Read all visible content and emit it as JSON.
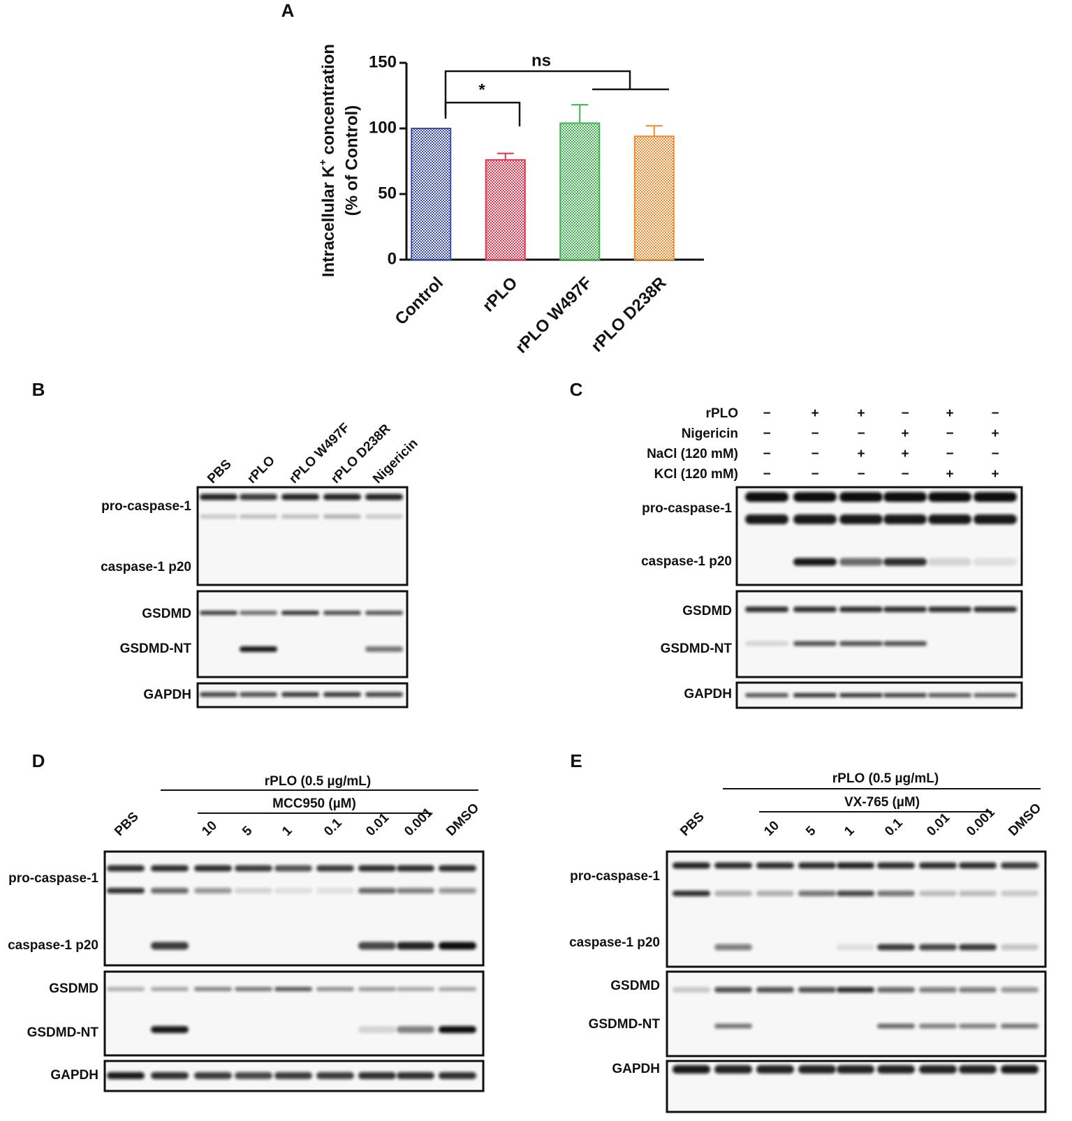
{
  "panel_labels": [
    "A",
    "B",
    "C",
    "D",
    "E"
  ],
  "chart_data": {
    "type": "bar",
    "ylabel": {
      "text": "Intracellular K",
      "superscript": "+",
      "suffix": " concentration",
      "line2": "(% of Control)"
    },
    "categories": [
      "Control",
      "rPLO",
      "rPLO W497F",
      "rPLO D238R"
    ],
    "values": [
      100,
      76,
      104,
      94
    ],
    "errors": [
      0,
      5,
      14,
      8
    ],
    "colors": [
      "#3a4bb0",
      "#e8334a",
      "#3cb54a",
      "#f08a2c"
    ],
    "ylim": [
      0,
      150
    ],
    "yticks": [
      0,
      50,
      100,
      150
    ],
    "annotations": [
      "*",
      "ns"
    ]
  },
  "blot_b": {
    "lanes": [
      "PBS",
      "rPLO",
      "rPLO W497F",
      "rPLO D238R",
      "Nigericin"
    ],
    "rows": [
      "pro-caspase-1",
      "caspase-1 p20",
      "GSDMD",
      "GSDMD-NT",
      "GAPDH"
    ]
  },
  "blot_c": {
    "conditions": [
      {
        "name": "rPLO",
        "signs": [
          "−",
          "+",
          "+",
          "−",
          "+",
          "−"
        ]
      },
      {
        "name": "Nigericin",
        "signs": [
          "−",
          "−",
          "−",
          "+",
          "−",
          "+"
        ]
      },
      {
        "name": "NaCl (120 mM)",
        "signs": [
          "−",
          "−",
          "+",
          "+",
          "−",
          "−"
        ]
      },
      {
        "name": "KCl (120 mM)",
        "signs": [
          "−",
          "−",
          "−",
          "−",
          "+",
          "+"
        ]
      }
    ],
    "rows": [
      "pro-caspase-1",
      "caspase-1 p20",
      "GSDMD",
      "GSDMD-NT",
      "GAPDH"
    ]
  },
  "blot_d": {
    "treatment": "rPLO (0.5 µg/mL)",
    "inhibitor": "MCC950 (µM)",
    "lanes": [
      "PBS",
      null,
      "10",
      "5",
      "1",
      "0.1",
      "0.01",
      "0.001",
      "DMSO"
    ],
    "rows": [
      "pro-caspase-1",
      "caspase-1 p20",
      "GSDMD",
      "GSDMD-NT",
      "GAPDH"
    ]
  },
  "blot_e": {
    "treatment": "rPLO (0.5 µg/mL)",
    "inhibitor": "VX-765 (µM)",
    "lanes": [
      "PBS",
      null,
      "10",
      "5",
      "1",
      "0.1",
      "0.01",
      "0.001",
      "DMSO"
    ],
    "rows": [
      "pro-caspase-1",
      "caspase-1 p20",
      "GSDMD",
      "GSDMD-NT",
      "GAPDH"
    ]
  }
}
